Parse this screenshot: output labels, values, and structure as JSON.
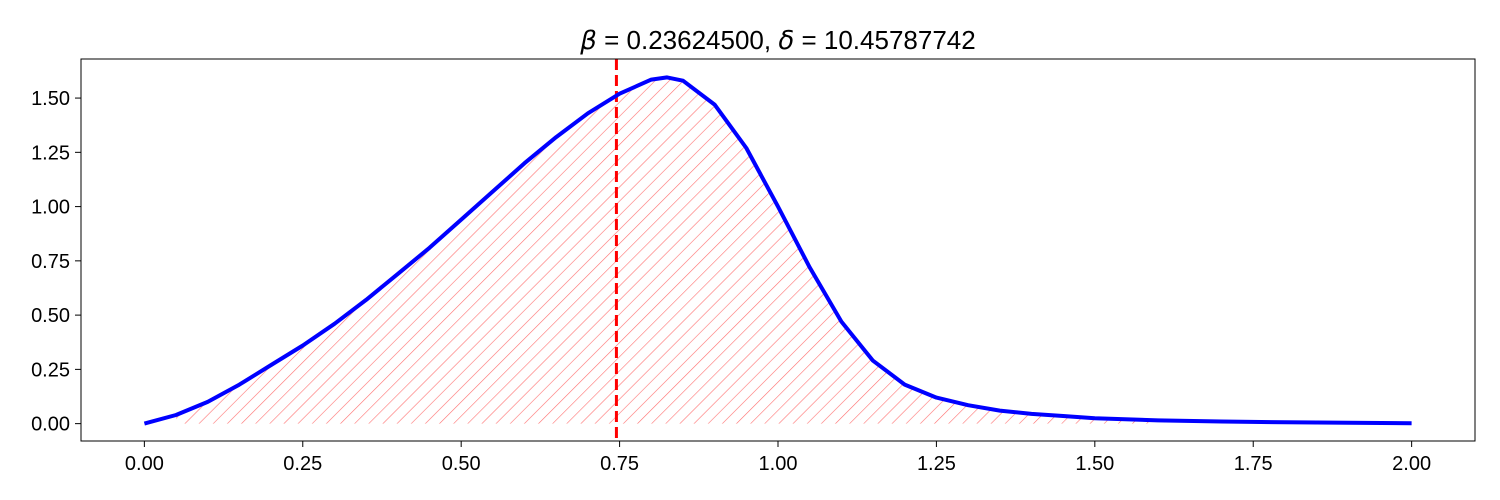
{
  "chart_data": {
    "type": "area",
    "title": {
      "beta_symbol": "β",
      "beta_value": " = 0.23624500, ",
      "delta_symbol": "δ",
      "delta_value": " = 10.45787742"
    },
    "xlabel": "",
    "ylabel": "",
    "xlim": [
      -0.1,
      2.1
    ],
    "ylim": [
      -0.08,
      1.68
    ],
    "xticks": [
      0.0,
      0.25,
      0.5,
      0.75,
      1.0,
      1.25,
      1.5,
      1.75,
      2.0
    ],
    "xtick_labels": [
      "0.00",
      "0.25",
      "0.50",
      "0.75",
      "1.00",
      "1.25",
      "1.50",
      "1.75",
      "2.00"
    ],
    "yticks": [
      0.0,
      0.25,
      0.5,
      0.75,
      1.0,
      1.25,
      1.5
    ],
    "ytick_labels": [
      "0.00",
      "0.25",
      "0.50",
      "0.75",
      "1.00",
      "1.25",
      "1.50"
    ],
    "grid": false,
    "series": [
      {
        "style": "line",
        "color": "#0000ff",
        "x": [
          0.0,
          0.05,
          0.1,
          0.15,
          0.2,
          0.25,
          0.3,
          0.35,
          0.4,
          0.45,
          0.5,
          0.55,
          0.6,
          0.65,
          0.7,
          0.75,
          0.8,
          0.825,
          0.85,
          0.9,
          0.95,
          1.0,
          1.05,
          1.1,
          1.15,
          1.2,
          1.25,
          1.3,
          1.35,
          1.4,
          1.45,
          1.5,
          1.6,
          1.7,
          1.8,
          1.9,
          2.0
        ],
        "y": [
          0.0,
          0.04,
          0.1,
          0.18,
          0.27,
          0.36,
          0.46,
          0.57,
          0.69,
          0.81,
          0.94,
          1.07,
          1.2,
          1.32,
          1.43,
          1.52,
          1.585,
          1.595,
          1.58,
          1.47,
          1.27,
          1.0,
          0.72,
          0.47,
          0.29,
          0.18,
          0.12,
          0.085,
          0.06,
          0.045,
          0.035,
          0.025,
          0.015,
          0.01,
          0.006,
          0.004,
          0.002
        ]
      }
    ],
    "hatched_region": {
      "x_from": 0.05,
      "x_to": 1.6,
      "color": "#ff6666",
      "pattern": "diagonal"
    },
    "vline": {
      "x": 0.745,
      "color": "#ff0000",
      "style": "dashed"
    }
  }
}
